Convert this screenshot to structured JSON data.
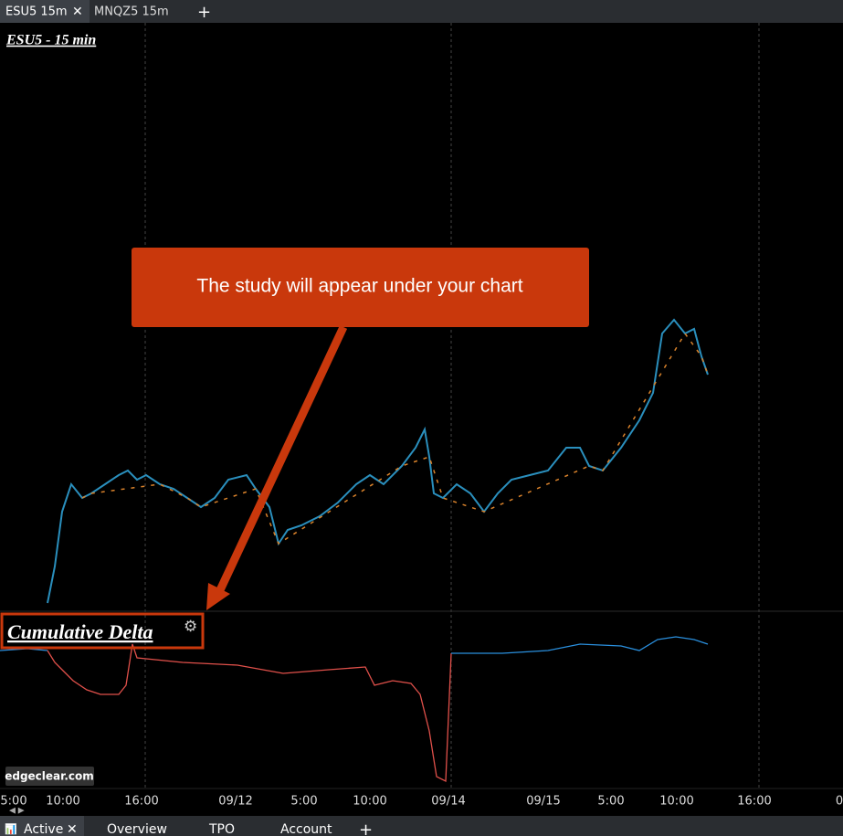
{
  "top_tabs": [
    "ESU5 15m",
    "MNQZ5 15m"
  ],
  "add_tab": "+",
  "chart_title": "ESU5 - 15 min",
  "callout": "The study will appear under your chart",
  "study_title": "Cumulative Delta",
  "watermark": "edgeclear.com",
  "x_axis_labels": [
    "5:00",
    "10:00",
    "16:00",
    "09/12",
    "5:00",
    "10:00",
    "09/14",
    "09/15",
    "5:00",
    "10:00",
    "16:00",
    "0"
  ],
  "bottom_tabs": [
    "Active",
    "Overview",
    "TPO",
    "Account"
  ],
  "bottom_add": "+"
}
